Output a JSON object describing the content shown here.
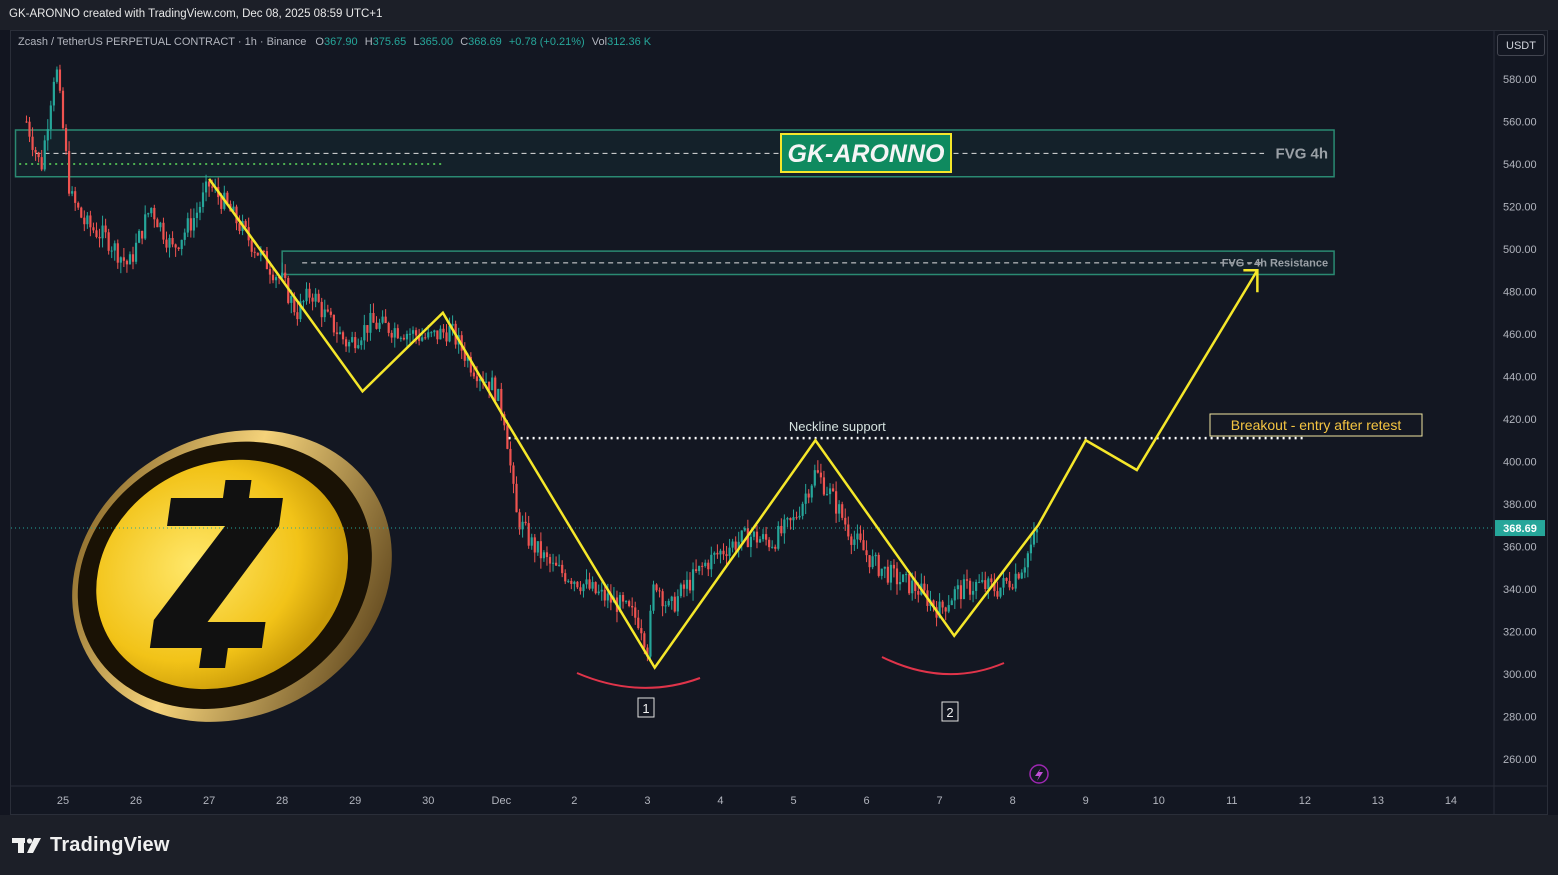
{
  "header": {
    "created_by": "GK-ARONNO created with TradingView.com, Dec 08, 2025 08:59 UTC+1",
    "symbol": "Zcash / TetherUS PERPETUAL CONTRACT · 1h · Binance",
    "ohlc": {
      "o_label": "O",
      "o": "367.90",
      "h_label": "H",
      "h": "375.65",
      "l_label": "L",
      "l": "365.00",
      "c_label": "C",
      "c": "368.69",
      "change": "+0.78 (+0.21%)",
      "vol_label": "Vol",
      "vol": "312.36 K"
    },
    "currency_button": "USDT"
  },
  "footer": {
    "brand": "TradingView",
    "logo_icon": "tradingview-logo-icon"
  },
  "colors": {
    "up": "#26a69a",
    "down": "#ef5350",
    "pattern": "#f5e72a",
    "zone": "#2a8a72",
    "background": "#131722"
  },
  "chart_data": {
    "type": "candlestick",
    "ylim": [
      250,
      595
    ],
    "x_tick_labels": [
      "25",
      "26",
      "27",
      "28",
      "29",
      "30",
      "Dec",
      "2",
      "3",
      "4",
      "5",
      "6",
      "7",
      "8",
      "9",
      "10",
      "11",
      "12",
      "13",
      "14"
    ],
    "y_tick_labels": [
      "580.00",
      "560.00",
      "540.00",
      "520.00",
      "500.00",
      "480.00",
      "460.00",
      "440.00",
      "420.00",
      "400.00",
      "380.00",
      "360.00",
      "340.00",
      "320.00",
      "300.00",
      "280.00",
      "260.00"
    ],
    "last_price": 368.69,
    "last_price_label": "368.69",
    "price_path": [
      [
        24.5,
        560
      ],
      [
        24.7,
        538
      ],
      [
        24.9,
        588
      ],
      [
        25.1,
        525
      ],
      [
        25.3,
        512
      ],
      [
        25.6,
        505
      ],
      [
        25.9,
        492
      ],
      [
        26.2,
        520
      ],
      [
        26.5,
        500
      ],
      [
        26.8,
        515
      ],
      [
        27.0,
        530
      ],
      [
        27.2,
        522
      ],
      [
        27.4,
        512
      ],
      [
        27.7,
        497
      ],
      [
        28.0,
        485
      ],
      [
        28.2,
        470
      ],
      [
        28.4,
        480
      ],
      [
        28.6,
        468
      ],
      [
        28.9,
        455
      ],
      [
        29.2,
        465
      ],
      [
        29.6,
        462
      ],
      [
        30.0,
        458
      ],
      [
        30.3,
        462
      ],
      [
        30.6,
        445
      ],
      [
        30.9,
        435
      ],
      [
        31.05,
        420
      ],
      [
        31.2,
        375
      ],
      [
        31.4,
        362
      ],
      [
        31.7,
        350
      ],
      [
        32.0,
        345
      ],
      [
        32.3,
        338
      ],
      [
        32.6,
        333
      ],
      [
        32.9,
        325
      ],
      [
        33.0,
        312
      ],
      [
        33.1,
        345
      ],
      [
        33.3,
        330
      ],
      [
        33.5,
        340
      ],
      [
        33.8,
        352
      ],
      [
        34.1,
        360
      ],
      [
        34.4,
        365
      ],
      [
        34.7,
        362
      ],
      [
        35.0,
        372
      ],
      [
        35.3,
        395
      ],
      [
        35.5,
        385
      ],
      [
        35.8,
        365
      ],
      [
        36.1,
        352
      ],
      [
        36.4,
        345
      ],
      [
        36.7,
        340
      ],
      [
        37.0,
        330
      ],
      [
        37.2,
        338
      ],
      [
        37.5,
        342
      ],
      [
        37.8,
        340
      ],
      [
        38.0,
        345
      ],
      [
        38.15,
        352
      ],
      [
        38.35,
        368
      ]
    ],
    "pattern_path": [
      [
        27.0,
        533
      ],
      [
        29.1,
        433
      ],
      [
        30.2,
        470
      ],
      [
        31.05,
        420
      ],
      [
        33.1,
        303
      ],
      [
        35.3,
        410
      ],
      [
        37.2,
        318
      ],
      [
        38.35,
        370
      ],
      [
        39.0,
        410
      ],
      [
        39.7,
        396
      ],
      [
        41.35,
        490
      ]
    ],
    "zones": [
      {
        "x0": 24.35,
        "x1": 42.4,
        "y_top": 556,
        "y_bottom": 534,
        "label": "FVG 4h"
      },
      {
        "x0": 28.0,
        "x1": 42.4,
        "y_top": 499,
        "y_bottom": 488,
        "label": "FVG - 4h Resistance"
      }
    ],
    "neckline": {
      "x0": 31.1,
      "x1": 42.0,
      "y": 411,
      "label": "Neckline support"
    },
    "annotations": {
      "watermark": "GK-ARONNO",
      "breakout_label": "Breakout - entry after retest",
      "bottom1": "1",
      "bottom2": "2"
    }
  }
}
